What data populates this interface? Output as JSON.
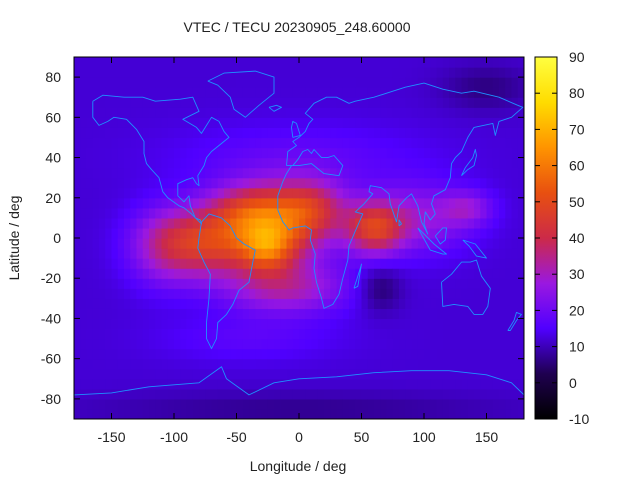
{
  "chart_data": {
    "type": "heatmap",
    "title": "VTEC / TECU 20230905_248.60000",
    "xlabel": "Longitude / deg",
    "ylabel": "Latitude / deg",
    "xlim": [
      -180,
      180
    ],
    "ylim": [
      -90,
      90
    ],
    "x_ticks": [
      -150,
      -100,
      -50,
      0,
      50,
      100,
      150
    ],
    "y_ticks": [
      -80,
      -60,
      -40,
      -20,
      0,
      20,
      40,
      60,
      80
    ],
    "colorbar": {
      "range": [
        -10,
        90
      ],
      "ticks": [
        -10,
        0,
        10,
        20,
        30,
        40,
        50,
        60,
        70,
        80,
        90
      ],
      "colors": [
        "#000000",
        "#1f0050",
        "#5000ff",
        "#9a18e0",
        "#cc2a48",
        "#e85010",
        "#ff9400",
        "#ffdc00",
        "#ffff40"
      ]
    },
    "background_value": 12,
    "grid_step_deg": 5,
    "enhancements": [
      {
        "lon": -80,
        "lat": -2,
        "sig_lon": 28,
        "sig_lat": 12,
        "amp": 28
      },
      {
        "lon": -25,
        "lat": 5,
        "sig_lon": 30,
        "sig_lat": 14,
        "amp": 38
      },
      {
        "lon": -25,
        "lat": -5,
        "sig_lon": 14,
        "sig_lat": 8,
        "amp": 20
      },
      {
        "lon": -40,
        "lat": 15,
        "sig_lon": 22,
        "sig_lat": 8,
        "amp": 12
      },
      {
        "lon": 10,
        "lat": 15,
        "sig_lon": 20,
        "sig_lat": 10,
        "amp": 22
      },
      {
        "lon": -10,
        "lat": -25,
        "sig_lon": 35,
        "sig_lat": 9,
        "amp": 18
      },
      {
        "lon": 60,
        "lat": 5,
        "sig_lon": 16,
        "sig_lat": 9,
        "amp": 30
      },
      {
        "lon": 95,
        "lat": 10,
        "sig_lon": 30,
        "sig_lat": 12,
        "amp": 15
      },
      {
        "lon": 135,
        "lat": 15,
        "sig_lon": 14,
        "sig_lat": 6,
        "amp": 12
      },
      {
        "lon": -110,
        "lat": -5,
        "sig_lon": 20,
        "sig_lat": 14,
        "amp": 10
      },
      {
        "lon": 0,
        "lat": 40,
        "sig_lon": 70,
        "sig_lat": 12,
        "amp": 6
      },
      {
        "lon": -40,
        "lat": -50,
        "sig_lon": 50,
        "sig_lat": 8,
        "amp": 5
      }
    ],
    "depletions": [
      {
        "lon": 65,
        "lat": -25,
        "sig_lon": 12,
        "sig_lat": 8,
        "amp": 8
      },
      {
        "lon": 150,
        "lat": 75,
        "sig_lon": 25,
        "sig_lat": 8,
        "amp": 6
      },
      {
        "lon": 0,
        "lat": -85,
        "sig_lon": 120,
        "sig_lat": 6,
        "amp": 5
      }
    ],
    "coastlines": [
      {
        "name": "north-america",
        "points": [
          [
            -165,
            68
          ],
          [
            -157,
            71
          ],
          [
            -140,
            70
          ],
          [
            -125,
            70
          ],
          [
            -115,
            68
          ],
          [
            -95,
            69
          ],
          [
            -85,
            70
          ],
          [
            -80,
            63
          ],
          [
            -93,
            59
          ],
          [
            -82,
            55
          ],
          [
            -78,
            52
          ],
          [
            -70,
            60
          ],
          [
            -64,
            58
          ],
          [
            -60,
            53
          ],
          [
            -56,
            50
          ],
          [
            -66,
            45
          ],
          [
            -70,
            43
          ],
          [
            -74,
            40
          ],
          [
            -76,
            36
          ],
          [
            -81,
            31
          ],
          [
            -80,
            26
          ],
          [
            -82,
            27
          ],
          [
            -85,
            30
          ],
          [
            -90,
            29
          ],
          [
            -97,
            27
          ],
          [
            -97,
            21
          ],
          [
            -92,
            18
          ],
          [
            -88,
            21
          ],
          [
            -87,
            16
          ],
          [
            -83,
            10
          ],
          [
            -79,
            9
          ],
          [
            -78,
            7
          ],
          [
            -86,
            12
          ],
          [
            -92,
            15
          ],
          [
            -96,
            16
          ],
          [
            -105,
            20
          ],
          [
            -109,
            23
          ],
          [
            -112,
            30
          ],
          [
            -118,
            34
          ],
          [
            -122,
            37
          ],
          [
            -124,
            42
          ],
          [
            -124,
            48
          ],
          [
            -130,
            54
          ],
          [
            -138,
            59
          ],
          [
            -148,
            60
          ],
          [
            -153,
            58
          ],
          [
            -160,
            56
          ],
          [
            -165,
            60
          ],
          [
            -165,
            68
          ]
        ]
      },
      {
        "name": "greenland",
        "points": [
          [
            -73,
            78
          ],
          [
            -60,
            82
          ],
          [
            -35,
            83
          ],
          [
            -20,
            80
          ],
          [
            -20,
            72
          ],
          [
            -32,
            66
          ],
          [
            -43,
            60
          ],
          [
            -52,
            64
          ],
          [
            -55,
            70
          ],
          [
            -65,
            76
          ],
          [
            -73,
            78
          ]
        ]
      },
      {
        "name": "south-america",
        "points": [
          [
            -78,
            8
          ],
          [
            -72,
            12
          ],
          [
            -62,
            10
          ],
          [
            -55,
            6
          ],
          [
            -50,
            0
          ],
          [
            -44,
            -3
          ],
          [
            -35,
            -6
          ],
          [
            -37,
            -12
          ],
          [
            -40,
            -22
          ],
          [
            -48,
            -26
          ],
          [
            -53,
            -33
          ],
          [
            -58,
            -38
          ],
          [
            -65,
            -42
          ],
          [
            -66,
            -50
          ],
          [
            -70,
            -55
          ],
          [
            -74,
            -50
          ],
          [
            -74,
            -42
          ],
          [
            -72,
            -30
          ],
          [
            -71,
            -18
          ],
          [
            -76,
            -12
          ],
          [
            -81,
            -5
          ],
          [
            -80,
            0
          ],
          [
            -78,
            8
          ]
        ]
      },
      {
        "name": "eurasia-africa",
        "points": [
          [
            -10,
            36
          ],
          [
            -9,
            43
          ],
          [
            -2,
            46
          ],
          [
            -5,
            48
          ],
          [
            0,
            50
          ],
          [
            5,
            53
          ],
          [
            8,
            57
          ],
          [
            11,
            59
          ],
          [
            5,
            62
          ],
          [
            12,
            67
          ],
          [
            22,
            70
          ],
          [
            30,
            70
          ],
          [
            40,
            67
          ],
          [
            45,
            68
          ],
          [
            60,
            70
          ],
          [
            75,
            73
          ],
          [
            85,
            75
          ],
          [
            100,
            77
          ],
          [
            115,
            74
          ],
          [
            130,
            72
          ],
          [
            140,
            73
          ],
          [
            160,
            70
          ],
          [
            175,
            66
          ],
          [
            179,
            65
          ],
          [
            170,
            60
          ],
          [
            160,
            58
          ],
          [
            157,
            51
          ],
          [
            155,
            57
          ],
          [
            140,
            55
          ],
          [
            135,
            50
          ],
          [
            130,
            43
          ],
          [
            125,
            40
          ],
          [
            122,
            37
          ],
          [
            121,
            30
          ],
          [
            117,
            24
          ],
          [
            108,
            21
          ],
          [
            106,
            17
          ],
          [
            109,
            12
          ],
          [
            105,
            9
          ],
          [
            101,
            13
          ],
          [
            100,
            7
          ],
          [
            103,
            2
          ],
          [
            98,
            8
          ],
          [
            95,
            16
          ],
          [
            90,
            22
          ],
          [
            86,
            20
          ],
          [
            80,
            16
          ],
          [
            78,
            8
          ],
          [
            73,
            17
          ],
          [
            72,
            22
          ],
          [
            66,
            25
          ],
          [
            57,
            26
          ],
          [
            56,
            23
          ],
          [
            59,
            22
          ],
          [
            52,
            17
          ],
          [
            45,
            13
          ],
          [
            51,
            12
          ],
          [
            44,
            2
          ],
          [
            40,
            -4
          ],
          [
            39,
            -11
          ],
          [
            35,
            -20
          ],
          [
            32,
            -28
          ],
          [
            27,
            -33
          ],
          [
            20,
            -35
          ],
          [
            18,
            -30
          ],
          [
            14,
            -22
          ],
          [
            12,
            -15
          ],
          [
            13,
            -8
          ],
          [
            9,
            -1
          ],
          [
            10,
            4
          ],
          [
            5,
            6
          ],
          [
            -5,
            5
          ],
          [
            -8,
            4
          ],
          [
            -13,
            8
          ],
          [
            -17,
            14
          ],
          [
            -17,
            21
          ],
          [
            -13,
            28
          ],
          [
            -10,
            32
          ],
          [
            -6,
            36
          ],
          [
            0,
            36
          ],
          [
            10,
            37
          ],
          [
            20,
            32
          ],
          [
            32,
            31
          ],
          [
            35,
            36
          ],
          [
            28,
            41
          ],
          [
            23,
            40
          ],
          [
            18,
            40
          ],
          [
            12,
            44
          ],
          [
            10,
            42
          ],
          [
            7,
            44
          ],
          [
            3,
            43
          ],
          [
            -1,
            39
          ],
          [
            -5,
            36
          ],
          [
            -10,
            36
          ]
        ]
      },
      {
        "name": "australia",
        "points": [
          [
            114,
            -22
          ],
          [
            122,
            -18
          ],
          [
            130,
            -12
          ],
          [
            137,
            -12
          ],
          [
            142,
            -11
          ],
          [
            146,
            -19
          ],
          [
            153,
            -25
          ],
          [
            151,
            -34
          ],
          [
            147,
            -38
          ],
          [
            140,
            -38
          ],
          [
            135,
            -34
          ],
          [
            124,
            -33
          ],
          [
            115,
            -34
          ],
          [
            114,
            -22
          ]
        ]
      },
      {
        "name": "antarctica",
        "points": [
          [
            -180,
            -78
          ],
          [
            -150,
            -77
          ],
          [
            -120,
            -74
          ],
          [
            -80,
            -72
          ],
          [
            -62,
            -64
          ],
          [
            -58,
            -70
          ],
          [
            -40,
            -78
          ],
          [
            -20,
            -72
          ],
          [
            0,
            -70
          ],
          [
            30,
            -69
          ],
          [
            60,
            -67
          ],
          [
            90,
            -66
          ],
          [
            120,
            -66
          ],
          [
            150,
            -68
          ],
          [
            170,
            -72
          ],
          [
            180,
            -78
          ]
        ]
      },
      {
        "name": "madagascar",
        "points": [
          [
            44,
            -25
          ],
          [
            49,
            -15
          ],
          [
            50,
            -13
          ],
          [
            47,
            -24
          ],
          [
            44,
            -25
          ]
        ]
      },
      {
        "name": "britain",
        "points": [
          [
            -5,
            50
          ],
          [
            1,
            51
          ],
          [
            -2,
            57
          ],
          [
            -5,
            58
          ],
          [
            -6,
            55
          ],
          [
            -5,
            50
          ]
        ]
      },
      {
        "name": "japan",
        "points": [
          [
            130,
            31
          ],
          [
            135,
            34
          ],
          [
            140,
            36
          ],
          [
            142,
            41
          ],
          [
            141,
            44
          ],
          [
            139,
            40
          ],
          [
            133,
            35
          ],
          [
            130,
            31
          ]
        ]
      },
      {
        "name": "new-zealand",
        "points": [
          [
            167,
            -46
          ],
          [
            172,
            -41
          ],
          [
            174,
            -37
          ],
          [
            178,
            -38
          ],
          [
            174,
            -41
          ],
          [
            169,
            -46
          ],
          [
            167,
            -46
          ]
        ]
      },
      {
        "name": "indonesia",
        "points": [
          [
            95,
            5
          ],
          [
            105,
            -6
          ],
          [
            115,
            -8
          ],
          [
            118,
            -8
          ],
          [
            108,
            -3
          ],
          [
            100,
            2
          ],
          [
            95,
            5
          ]
        ]
      },
      {
        "name": "borneo",
        "points": [
          [
            109,
            1
          ],
          [
            113,
            -3
          ],
          [
            117,
            -1
          ],
          [
            118,
            5
          ],
          [
            115,
            5
          ],
          [
            109,
            1
          ]
        ]
      },
      {
        "name": "new-guinea",
        "points": [
          [
            131,
            -1
          ],
          [
            141,
            -3
          ],
          [
            150,
            -10
          ],
          [
            142,
            -9
          ],
          [
            136,
            -4
          ],
          [
            131,
            -1
          ]
        ]
      },
      {
        "name": "sri-lanka",
        "points": [
          [
            80,
            6
          ],
          [
            82,
            7
          ],
          [
            80,
            9
          ],
          [
            80,
            6
          ]
        ]
      },
      {
        "name": "iceland",
        "points": [
          [
            -24,
            65
          ],
          [
            -18,
            66
          ],
          [
            -14,
            65
          ],
          [
            -20,
            63
          ],
          [
            -24,
            65
          ]
        ]
      }
    ]
  }
}
